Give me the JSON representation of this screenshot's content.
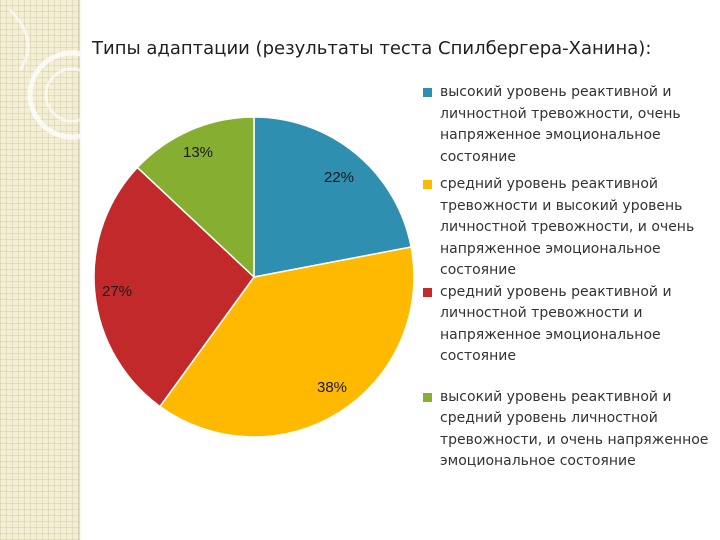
{
  "title": "Типы адаптации (результаты теста Спилбергера-Ханина):",
  "chart_data": {
    "type": "pie",
    "title": "Типы адаптации (результаты теста Спилбергера-Ханина):",
    "legend_position": "right",
    "slices": [
      {
        "label": "высокий уровень реактивной и личностной тревожности, очень напряженное эмоциональное состояние",
        "value": 22,
        "display": "22%",
        "color": "#2e8fb0"
      },
      {
        "label": "средний уровень реактивной тревожности и высокий уровень личностной тревожности, и очень напряженное эмоциональное состояние",
        "value": 38,
        "display": "38%",
        "color": "#ffb900"
      },
      {
        "label": "средний уровень реактивной и личностной тревожности и напряженное эмоциональное состояние",
        "value": 27,
        "display": "27%",
        "color": "#c1292b"
      },
      {
        "label": "высокий уровень реактивной и средний уровень личностной тревожности, и очень напряженное эмоциональное состояние",
        "value": 13,
        "display": "13%",
        "color": "#86ae30"
      }
    ]
  }
}
